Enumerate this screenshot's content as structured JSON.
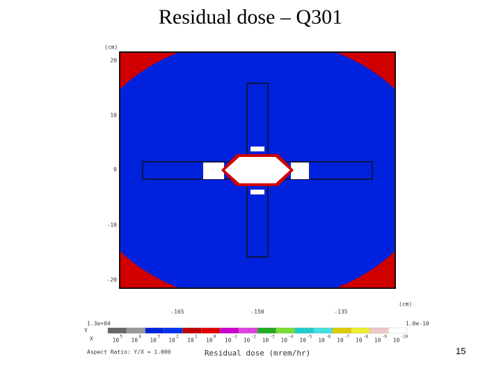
{
  "title": "Residual dose – Q301",
  "figure": {
    "y_unit": "(cm)",
    "y_ticks": [
      "20",
      "10",
      "0",
      "-10",
      "-20"
    ],
    "x_unit": "(cm)",
    "x_ticks": [
      "-165",
      "-150",
      "-135"
    ],
    "axis_letters": [
      "Y",
      "X"
    ],
    "colorbar": {
      "max_label": "1.3e+04",
      "min_label": "1.0e-10",
      "ticks": [
        {
          "base": "10",
          "exp": "5"
        },
        {
          "base": "10",
          "exp": "4"
        },
        {
          "base": "10",
          "exp": "3"
        },
        {
          "base": "10",
          "exp": "2"
        },
        {
          "base": "10",
          "exp": "1"
        },
        {
          "base": "10",
          "exp": "0"
        },
        {
          "base": "10",
          "exp": "-1"
        },
        {
          "base": "10",
          "exp": "-2"
        },
        {
          "base": "10",
          "exp": "-3"
        },
        {
          "base": "10",
          "exp": "-4"
        },
        {
          "base": "10",
          "exp": "-5"
        },
        {
          "base": "10",
          "exp": "-6"
        },
        {
          "base": "10",
          "exp": "-7"
        },
        {
          "base": "10",
          "exp": "-8"
        },
        {
          "base": "10",
          "exp": "-9"
        },
        {
          "base": "10",
          "exp": "-10"
        }
      ],
      "label": "Residual dose (mrem/hr)",
      "aspect": "Aspect Ratio: Y/X = 1.000"
    }
  },
  "page_number": "15"
}
